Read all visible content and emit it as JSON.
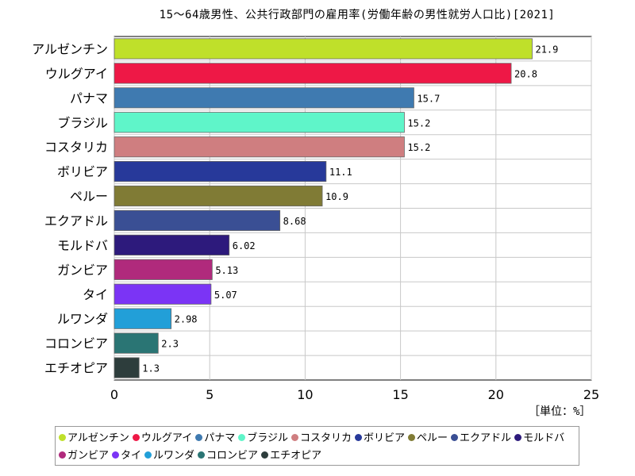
{
  "chart_data": {
    "type": "bar",
    "orientation": "horizontal",
    "title": "15〜64歳男性、公共行政部門の雇用率(労働年齢の男性就労人口比)[2021]",
    "unit_label": "［単位：%］",
    "xlim": [
      0,
      25
    ],
    "x_ticks": [
      0,
      5,
      10,
      15,
      20,
      25
    ],
    "grid": true,
    "legend_position": "bottom",
    "categories": [
      "アルゼンチン",
      "ウルグアイ",
      "パナマ",
      "ブラジル",
      "コスタリカ",
      "ボリビア",
      "ペルー",
      "エクアドル",
      "モルドバ",
      "ガンビア",
      "タイ",
      "ルワンダ",
      "コロンビア",
      "エチオピア"
    ],
    "values": [
      21.9,
      20.8,
      15.7,
      15.2,
      15.2,
      11.1,
      10.9,
      8.68,
      6.02,
      5.13,
      5.07,
      2.98,
      2.3,
      1.3
    ],
    "value_labels": [
      "21.9",
      "20.8",
      "15.7",
      "15.2",
      "15.2",
      "11.1",
      "10.9",
      "8.68",
      "6.02",
      "5.13",
      "5.07",
      "2.98",
      "2.3",
      "1.3"
    ],
    "colors": [
      "#bfe02a",
      "#ee1846",
      "#3f7ab0",
      "#5ff5c9",
      "#cf7e80",
      "#27399a",
      "#807b35",
      "#3a4f94",
      "#2d1a7c",
      "#b02a7c",
      "#7b34f5",
      "#229fd8",
      "#2a7574",
      "#2d3d3c"
    ]
  }
}
